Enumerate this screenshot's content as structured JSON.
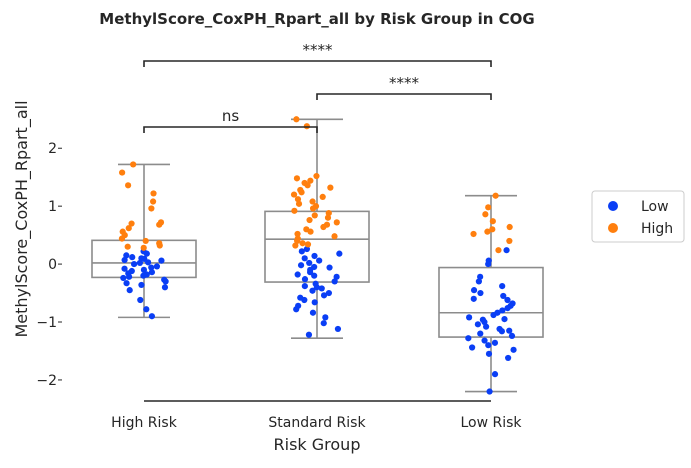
{
  "chart_data": {
    "type": "box-strip",
    "title": "MethylScore_CoxPH_Rpart_all by Risk Group in COG",
    "xlabel": "Risk Group",
    "ylabel": "MethylScore_CoxPH_Rpart_all",
    "ylim": [
      -2.45,
      2.85
    ],
    "yticks": [
      -2,
      -1,
      0,
      1,
      2
    ],
    "ytick_labels": [
      "−2",
      "−1",
      "0",
      "1",
      "2"
    ],
    "categories": [
      "High Risk",
      "Standard Risk",
      "Low Risk"
    ],
    "boxes": [
      {
        "category": "High Risk",
        "whisker_low": -0.92,
        "q1": -0.23,
        "median": 0.02,
        "q3": 0.41,
        "whisker_high": 1.72
      },
      {
        "category": "Standard Risk",
        "whisker_low": -1.28,
        "q1": -0.31,
        "median": 0.43,
        "q3": 0.91,
        "whisker_high": 2.5
      },
      {
        "category": "Low Risk",
        "whisker_low": -2.2,
        "q1": -1.26,
        "median": -0.84,
        "q3": -0.06,
        "whisker_high": 1.18
      }
    ],
    "legend": {
      "position": "right",
      "entries": [
        {
          "name": "Low",
          "color": "#0a3ef5"
        },
        {
          "name": "High",
          "color": "#ff7f0e"
        }
      ]
    },
    "series": [
      {
        "name": "Low",
        "color": "#0a3ef5",
        "points": [
          {
            "category": "High Risk",
            "values": [
              0.22,
              0.18,
              0.15,
              0.12,
              0.1,
              0.09,
              0.07,
              0.06,
              0.03,
              0.02,
              0.0,
              -0.04,
              -0.06,
              -0.08,
              -0.1,
              -0.12,
              -0.14,
              -0.16,
              -0.18,
              -0.2,
              -0.22,
              -0.24,
              -0.27,
              -0.3,
              -0.33,
              -0.36,
              -0.4,
              -0.45,
              -0.62,
              -0.78,
              -0.9
            ]
          },
          {
            "category": "Standard Risk",
            "values": [
              0.26,
              0.22,
              0.18,
              0.14,
              0.1,
              0.06,
              0.02,
              -0.02,
              -0.06,
              -0.1,
              -0.14,
              -0.18,
              -0.22,
              -0.26,
              -0.3,
              -0.34,
              -0.38,
              -0.42,
              -0.46,
              -0.5,
              -0.54,
              -0.58,
              -0.62,
              -0.66,
              -0.72,
              -0.78,
              -0.84,
              -0.92,
              -1.02,
              -1.12,
              -1.22,
              -0.05,
              -0.4,
              -0.2
            ]
          },
          {
            "category": "Low Risk",
            "values": [
              0.24,
              0.06,
              0.0,
              -0.22,
              -0.3,
              -0.38,
              -0.45,
              -0.5,
              -0.55,
              -0.62,
              -0.68,
              -0.72,
              -0.76,
              -0.8,
              -0.84,
              -0.88,
              -0.92,
              -0.96,
              -1.0,
              -1.04,
              -1.08,
              -1.12,
              -1.16,
              -1.2,
              -1.24,
              -1.28,
              -1.32,
              -1.36,
              -1.4,
              -1.44,
              -1.48,
              -1.55,
              -1.62,
              -1.9,
              -2.2,
              -0.6,
              -0.95,
              -1.15
            ]
          }
        ]
      },
      {
        "name": "High",
        "color": "#ff7f0e",
        "points": [
          {
            "category": "High Risk",
            "values": [
              1.72,
              1.58,
              1.36,
              1.22,
              1.08,
              0.96,
              0.72,
              0.7,
              0.68,
              0.62,
              0.56,
              0.5,
              0.44,
              0.4,
              0.36,
              0.32,
              0.3,
              0.28
            ]
          },
          {
            "category": "Standard Risk",
            "values": [
              2.5,
              2.38,
              1.52,
              1.48,
              1.44,
              1.4,
              1.36,
              1.32,
              1.28,
              1.24,
              1.2,
              1.16,
              1.12,
              1.08,
              1.04,
              1.0,
              0.96,
              0.92,
              0.88,
              0.84,
              0.8,
              0.76,
              0.72,
              0.68,
              0.64,
              0.6,
              0.56,
              0.52,
              0.48,
              0.44,
              0.4,
              0.36,
              0.34,
              0.32
            ]
          },
          {
            "category": "Low Risk",
            "values": [
              1.18,
              0.98,
              0.86,
              0.74,
              0.64,
              0.6,
              0.56,
              0.52,
              0.4,
              0.24
            ]
          }
        ]
      }
    ],
    "significance": [
      {
        "from": "High Risk",
        "to": "Low Risk",
        "label": "****"
      },
      {
        "from": "Standard Risk",
        "to": "Low Risk",
        "label": "****"
      },
      {
        "from": "High Risk",
        "to": "Standard Risk",
        "label": "ns"
      }
    ]
  }
}
